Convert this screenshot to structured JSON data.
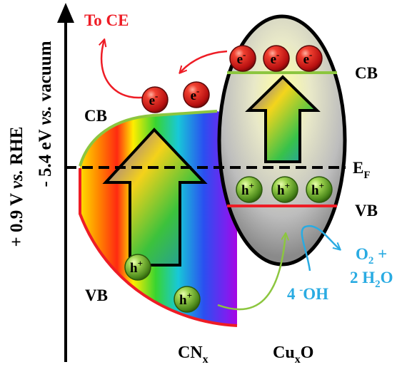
{
  "axis": {
    "label_rhe_value": "+ 0.9 V",
    "label_rhe_vs": "vs.",
    "label_rhe_unit": "RHE",
    "label_vac_value": "- 5.4 eV",
    "label_vac_vs": "vs.",
    "label_vac_unit": "vacuum"
  },
  "labels": {
    "to_ce": "To CE",
    "cb_left": "CB",
    "vb_left": "VB",
    "cb_right": "CB",
    "vb_right": "VB",
    "ef_main": "E",
    "ef_sub": "F",
    "cnx_main": "CN",
    "cnx_sub": "x",
    "cuxo_main": "Cu",
    "cuxo_sub": "x",
    "cuxo_tail": "O"
  },
  "reaction": {
    "o2_line1_main": "O",
    "o2_line1_sub": "2",
    "o2_line1_tail": " +",
    "o2_line2_head": "2 H",
    "o2_line2_sub": "2",
    "o2_line2_tail": "O",
    "oh_head": "4 ",
    "oh_sup": "-",
    "oh_tail": "OH"
  },
  "particles": {
    "electron_label": "e",
    "electron_charge": "-",
    "hole_label": "h",
    "hole_charge": "+"
  },
  "colors": {
    "electron": "#d81a1a",
    "hole": "#5fa82c",
    "cb_line": "#8cc63f",
    "vb_line": "#ee1c25",
    "to_ce_text": "#ee1c25",
    "reaction_text": "#29abe2",
    "oh_arrow": "#8cc63f",
    "axis": "#000000"
  }
}
